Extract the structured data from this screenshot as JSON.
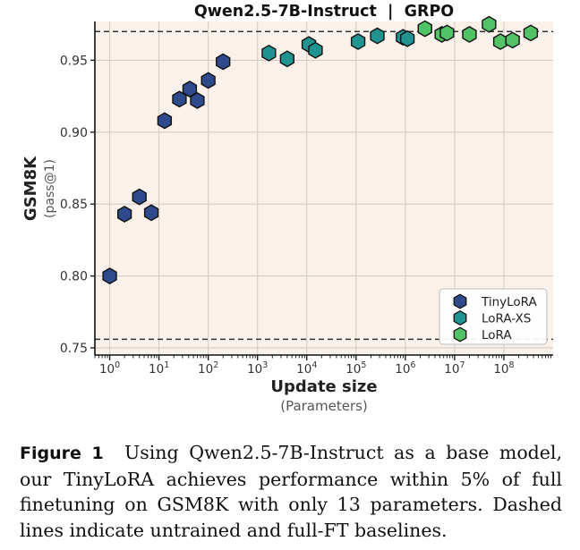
{
  "chart_data": {
    "type": "scatter",
    "title": "Qwen2.5-7B-Instruct  |  GRPO",
    "xlabel": "Update size",
    "xlabel_sub": "(Parameters)",
    "ylabel": "GSM8K",
    "ylabel_sub": "(pass@1)",
    "xscale": "log",
    "xlim": [
      0.5,
      1000000000
    ],
    "ylim": [
      0.745,
      0.977
    ],
    "xticks": [
      {
        "value": 1,
        "base": "10",
        "exp": "0"
      },
      {
        "value": 10,
        "base": "10",
        "exp": "1"
      },
      {
        "value": 100,
        "base": "10",
        "exp": "2"
      },
      {
        "value": 1000,
        "base": "10",
        "exp": "3"
      },
      {
        "value": 10000,
        "base": "10",
        "exp": "4"
      },
      {
        "value": 100000,
        "base": "10",
        "exp": "5"
      },
      {
        "value": 1000000,
        "base": "10",
        "exp": "6"
      },
      {
        "value": 10000000,
        "base": "10",
        "exp": "7"
      },
      {
        "value": 100000000,
        "base": "10",
        "exp": "8"
      }
    ],
    "yticks": [
      "0.75",
      "0.80",
      "0.85",
      "0.90",
      "0.95"
    ],
    "grid": true,
    "legend_position": "bottom-right",
    "baselines": [
      {
        "value": 0.97
      },
      {
        "value": 0.756
      }
    ],
    "series": [
      {
        "name": "TinyLoRA",
        "color": "#2f4a8c",
        "x": [
          1,
          2,
          4,
          7,
          13,
          26,
          42,
          60,
          100,
          200
        ],
        "y": [
          0.8,
          0.843,
          0.855,
          0.844,
          0.908,
          0.923,
          0.93,
          0.922,
          0.936,
          0.949
        ]
      },
      {
        "name": "LoRA-XS",
        "color": "#1f9490",
        "x": [
          1700,
          4000,
          11000,
          15000,
          110000,
          270000,
          900000,
          1100000
        ],
        "y": [
          0.955,
          0.951,
          0.961,
          0.957,
          0.963,
          0.967,
          0.966,
          0.965
        ]
      },
      {
        "name": "LoRA",
        "color": "#53c165",
        "x": [
          2500000,
          5500000,
          7000000,
          20000000,
          50000000,
          85000000,
          150000000,
          350000000
        ],
        "y": [
          0.972,
          0.968,
          0.969,
          0.968,
          0.975,
          0.963,
          0.964,
          0.969
        ]
      }
    ]
  },
  "caption": {
    "label": "Figure 1",
    "text": "Using Qwen2.5-7B-Instruct as a base model, our TinyLoRA achieves performance within 5% of full finetuning on GSM8K with only 13 parameters. Dashed lines indicate untrained and full-FT baselines."
  },
  "colors": {
    "plot_background": "#faf1ea",
    "grid": "#d6ccc4",
    "baseline": "#333333"
  }
}
